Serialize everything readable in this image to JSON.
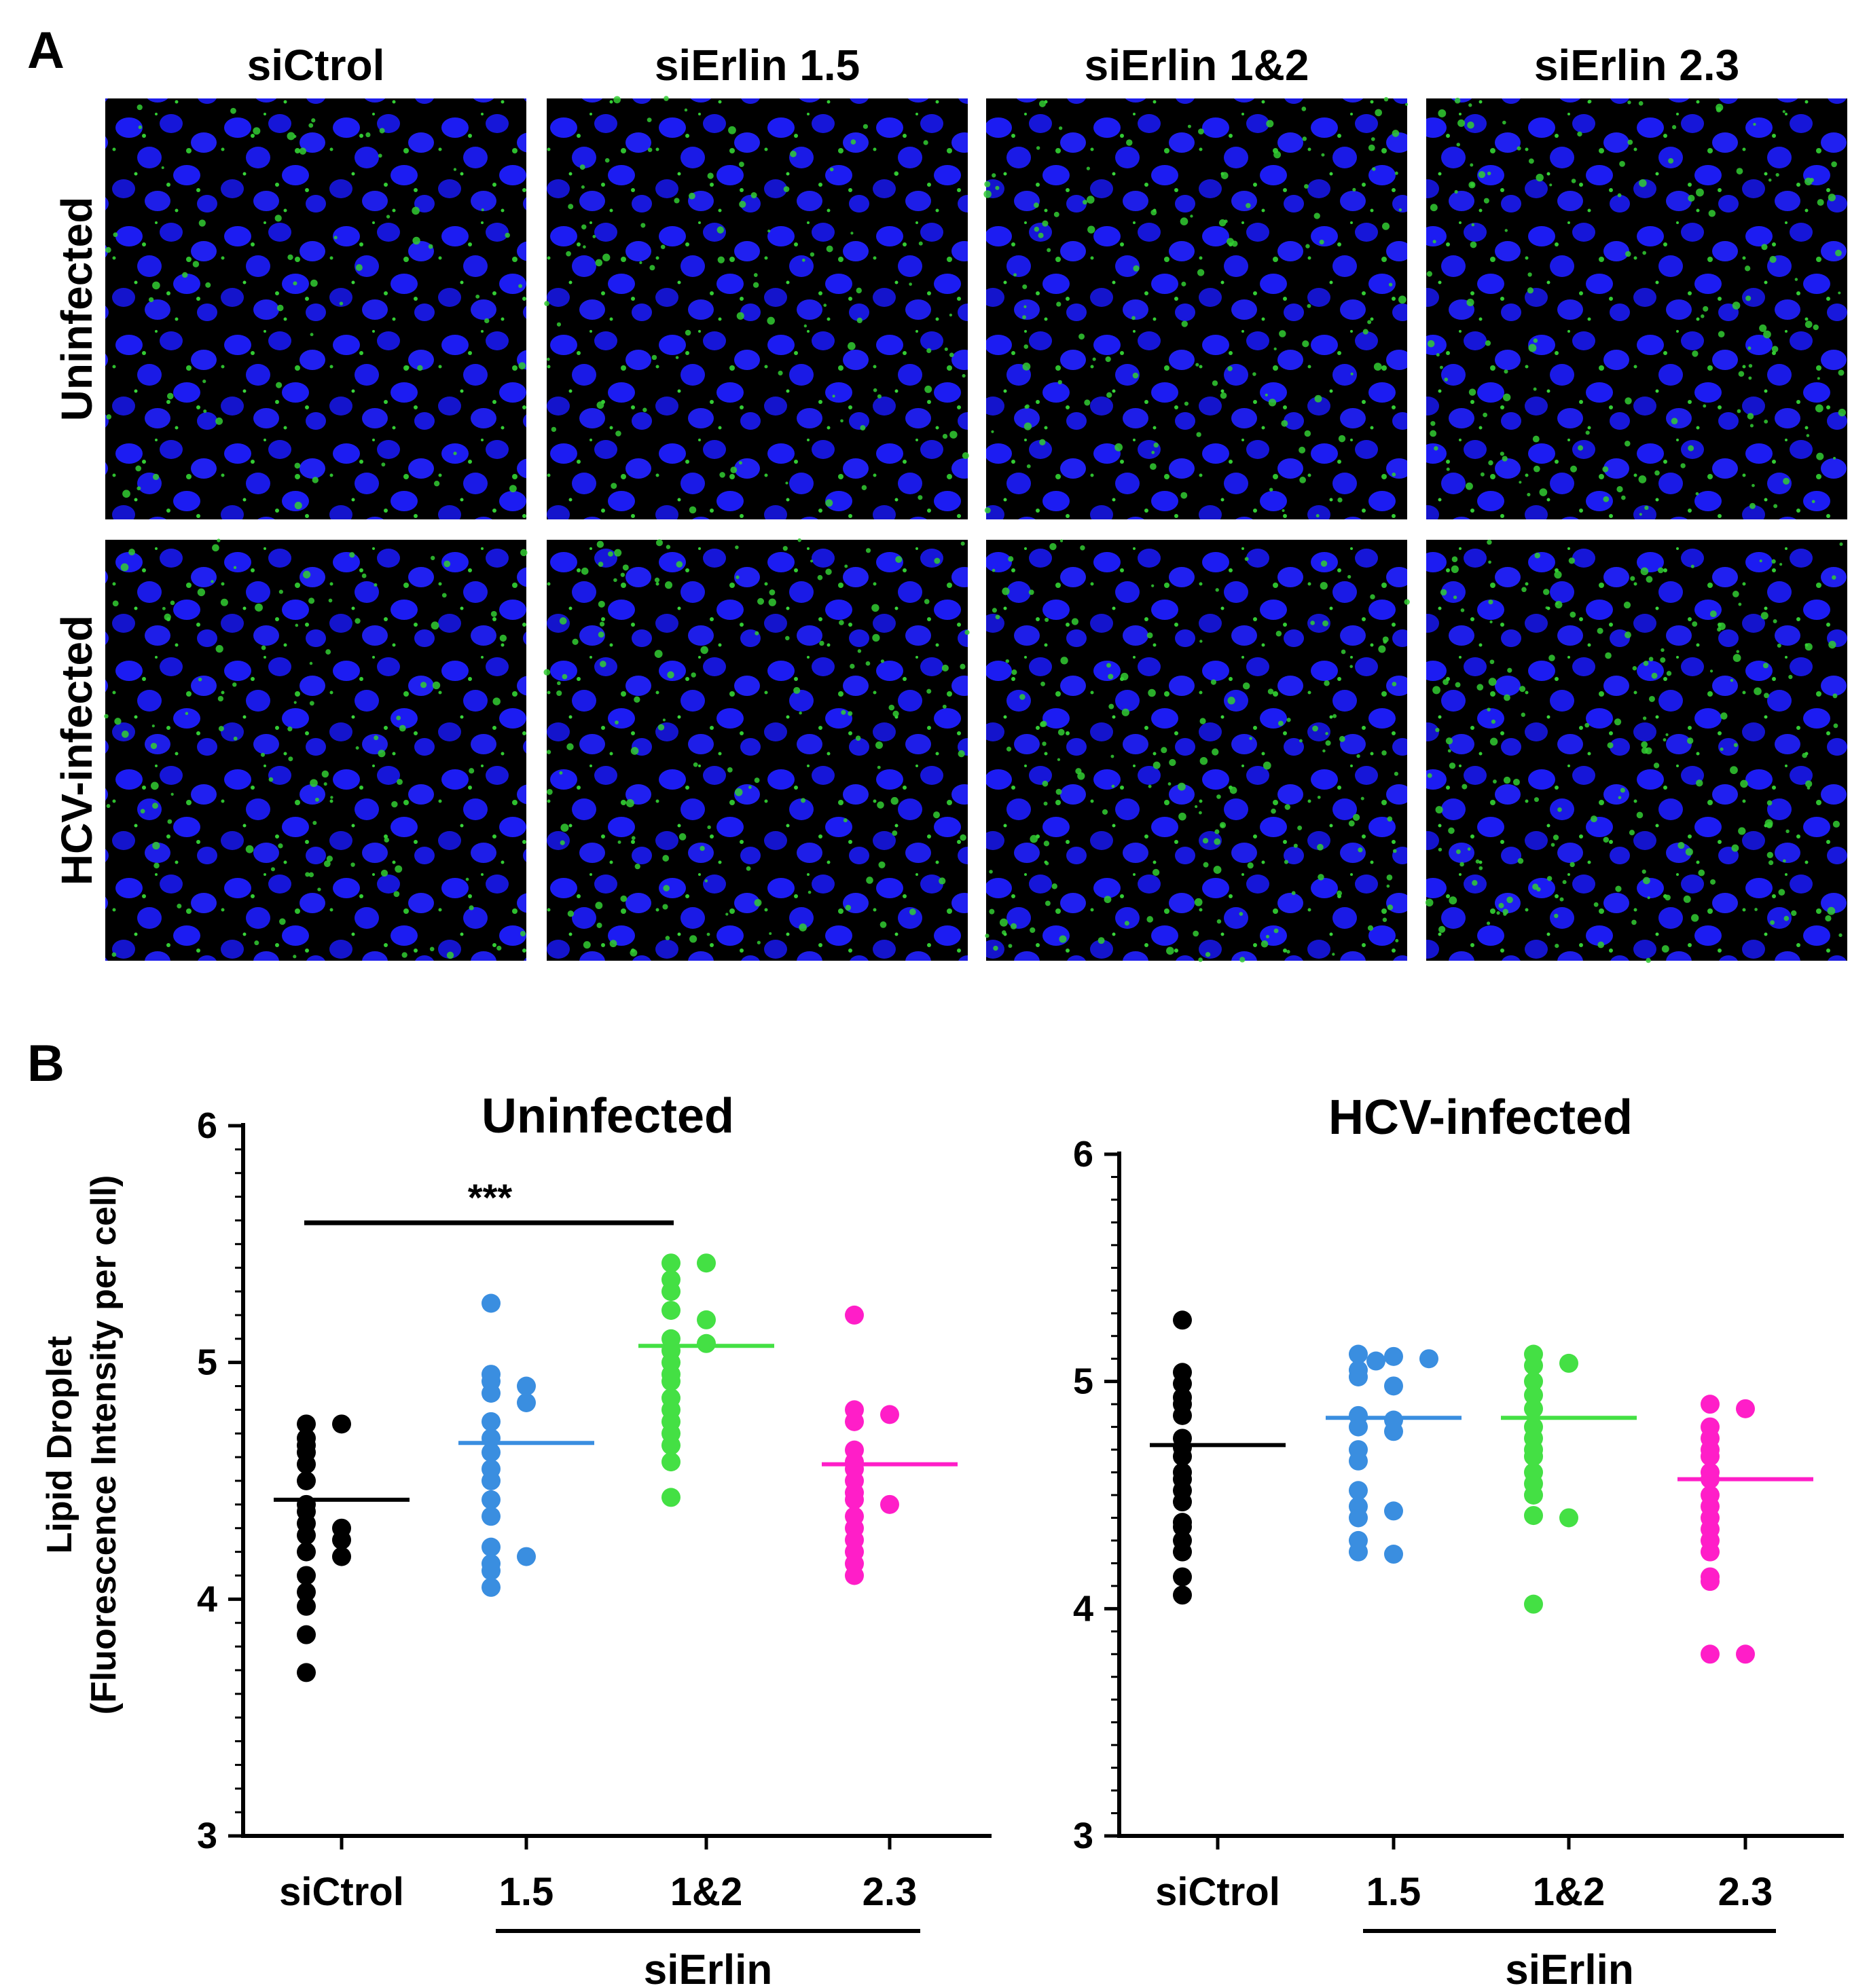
{
  "panel_a": {
    "letter": "A",
    "columns": [
      "siCtrol",
      "siErlin 1.5",
      "siErlin 1&2",
      "siErlin 2.3"
    ],
    "rows": [
      "Uninfected",
      "HCV-infected"
    ],
    "colors": {
      "nucleus": "#1c1cf2",
      "lipid": "#33cc33",
      "background": "#000000"
    }
  },
  "panel_b": {
    "letter": "B",
    "ylabel_line1": "Lipid Droplet",
    "ylabel_line2": "(Fluorescence Intensity per cell)",
    "group_label": "siErlin",
    "significance": "***"
  },
  "chart_data": [
    {
      "type": "scatter",
      "title": "Uninfected",
      "ylim": [
        3,
        6
      ],
      "yticks": [
        3,
        4,
        5,
        6
      ],
      "categories": [
        "siCtrol",
        "1.5",
        "1&2",
        "2.3"
      ],
      "colors": [
        "#000000",
        "#3a8ee0",
        "#44e044",
        "#ff1ec8"
      ],
      "means": [
        4.42,
        4.66,
        5.07,
        4.57
      ],
      "series": [
        {
          "values": [
            4.74,
            4.74,
            4.68,
            4.65,
            4.62,
            4.57,
            4.5,
            4.4,
            4.37,
            4.32,
            4.3,
            4.27,
            4.25,
            4.2,
            4.18,
            4.1,
            4.03,
            3.97,
            3.85,
            3.69
          ]
        },
        {
          "values": [
            5.25,
            4.95,
            4.92,
            4.9,
            4.87,
            4.83,
            4.75,
            4.68,
            4.62,
            4.55,
            4.5,
            4.42,
            4.35,
            4.22,
            4.18,
            4.15,
            4.12,
            4.05
          ]
        },
        {
          "values": [
            5.42,
            5.42,
            5.35,
            5.3,
            5.22,
            5.18,
            5.1,
            5.08,
            5.05,
            5.0,
            4.95,
            4.92,
            4.85,
            4.8,
            4.75,
            4.7,
            4.65,
            4.58,
            4.43
          ]
        },
        {
          "values": [
            5.2,
            4.8,
            4.78,
            4.75,
            4.63,
            4.58,
            4.55,
            4.5,
            4.45,
            4.42,
            4.4,
            4.35,
            4.3,
            4.25,
            4.2,
            4.15,
            4.1
          ]
        }
      ],
      "significance": {
        "from": "siCtrol",
        "to": "1&2",
        "y": 5.59,
        "label": "***"
      }
    },
    {
      "type": "scatter",
      "title": "HCV-infected",
      "ylim": [
        3,
        6
      ],
      "yticks": [
        3,
        4,
        5,
        6
      ],
      "categories": [
        "siCtrol",
        "1.5",
        "1&2",
        "2.3"
      ],
      "colors": [
        "#000000",
        "#3a8ee0",
        "#44e044",
        "#ff1ec8"
      ],
      "means": [
        4.72,
        4.84,
        4.84,
        4.57
      ],
      "series": [
        {
          "values": [
            5.27,
            5.04,
            4.99,
            4.93,
            4.9,
            4.85,
            4.75,
            4.71,
            4.67,
            4.6,
            4.57,
            4.52,
            4.47,
            4.38,
            4.36,
            4.3,
            4.25,
            4.14,
            4.06
          ]
        },
        {
          "values": [
            5.12,
            5.11,
            5.1,
            5.09,
            5.05,
            5.02,
            4.98,
            4.85,
            4.83,
            4.8,
            4.78,
            4.7,
            4.65,
            4.52,
            4.45,
            4.43,
            4.4,
            4.3,
            4.25,
            4.24
          ]
        },
        {
          "values": [
            5.12,
            5.08,
            5.07,
            5.0,
            4.94,
            4.88,
            4.8,
            4.75,
            4.7,
            4.67,
            4.6,
            4.55,
            4.5,
            4.41,
            4.4,
            4.02
          ]
        },
        {
          "values": [
            4.9,
            4.88,
            4.8,
            4.75,
            4.7,
            4.67,
            4.6,
            4.57,
            4.5,
            4.45,
            4.4,
            4.35,
            4.3,
            4.25,
            4.14,
            4.12,
            3.8,
            3.8
          ]
        }
      ]
    }
  ]
}
